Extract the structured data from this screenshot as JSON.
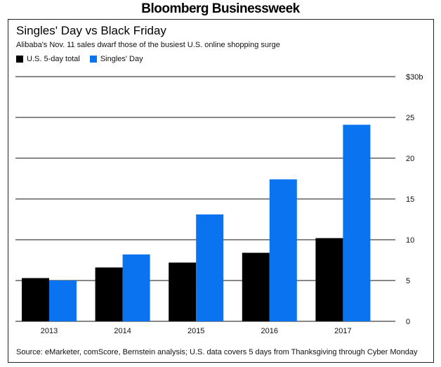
{
  "brand": "Bloomberg Businessweek",
  "colors": {
    "us": "#000000",
    "singles": "#0a74f0",
    "grid": "#111111"
  },
  "chart_data": {
    "type": "bar",
    "title": "Singles' Day vs Black Friday",
    "subtitle": "Alibaba's Nov. 11 sales dwarf those of the busiest U.S. online shopping surge",
    "categories": [
      "2013",
      "2014",
      "2015",
      "2016",
      "2017"
    ],
    "series": [
      {
        "name": "U.S. 5-day total",
        "values": [
          5.3,
          6.6,
          7.2,
          8.4,
          10.2
        ]
      },
      {
        "name": "Singles' Day",
        "values": [
          5.0,
          8.2,
          13.1,
          17.4,
          24.1
        ]
      }
    ],
    "ylim": [
      0,
      30
    ],
    "yticks": [
      0,
      5,
      10,
      15,
      20,
      25,
      30
    ],
    "ytick_labels": [
      "0",
      "5",
      "10",
      "15",
      "20",
      "25",
      "$30b"
    ],
    "grid": true,
    "legend": "top-left",
    "source": "Source: eMarketer, comScore, Bernstein analysis; U.S. data covers 5 days from Thanksgiving through Cyber Monday"
  }
}
